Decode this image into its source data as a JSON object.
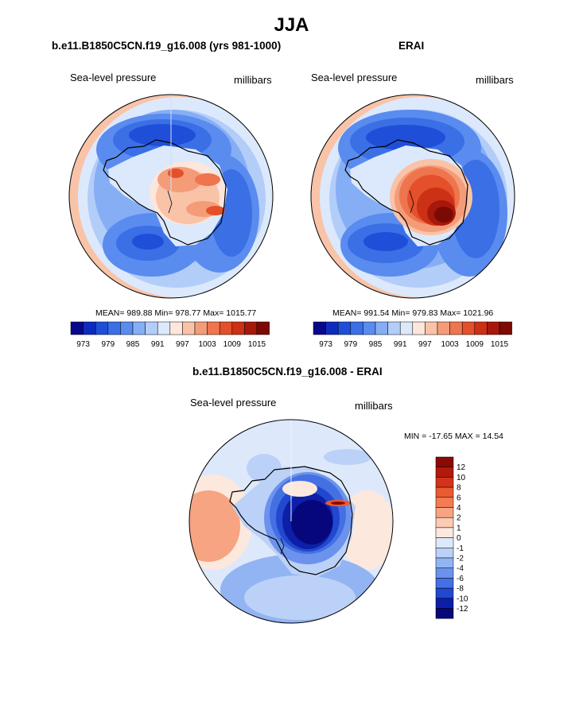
{
  "figure_title": "JJA",
  "panels": [
    {
      "title": "b.e11.B1850C5CN.f19_g16.008 (yrs 981-1000)",
      "left_label": "Sea-level pressure",
      "right_label": "millibars",
      "stats": "MEAN= 989.88  Min= 978.77  Max= 1015.77"
    },
    {
      "title": "ERAI",
      "left_label": "Sea-level pressure",
      "right_label": "millibars",
      "stats": "MEAN= 991.54  Min= 979.83  Max= 1021.96"
    },
    {
      "title": "b.e11.B1850C5CN.f19_g16.008 - ERAI",
      "left_label": "Sea-level pressure",
      "right_label": "millibars",
      "stats": "MIN = -17.65 MAX =  14.54"
    }
  ],
  "chart_data": [
    {
      "type": "heatmap",
      "title": "b.e11.B1850C5CN.f19_g16.008 (yrs 981-1000)",
      "variable": "Sea-level pressure",
      "units": "millibars",
      "projection": "south polar stereographic",
      "mean": 989.88,
      "min": 978.77,
      "max": 1015.77,
      "colorbar": {
        "levels": [
          970,
          973,
          976,
          979,
          982,
          985,
          988,
          991,
          994,
          997,
          1000,
          1003,
          1006,
          1009,
          1012,
          1015
        ],
        "tick_labels": [
          "973",
          "979",
          "985",
          "991",
          "997",
          "1003",
          "1009",
          "1015"
        ],
        "colors": [
          "#08088a",
          "#0e2bc0",
          "#1f4fd8",
          "#3a6fe6",
          "#5a8bef",
          "#86aef5",
          "#b3cdf9",
          "#dce9fc",
          "#fde6db",
          "#f9c3a8",
          "#f49c78",
          "#ee754e",
          "#e3502b",
          "#cc3015",
          "#a7180a",
          "#7a0a03"
        ]
      }
    },
    {
      "type": "heatmap",
      "title": "ERAI",
      "variable": "Sea-level pressure",
      "units": "millibars",
      "projection": "south polar stereographic",
      "mean": 991.54,
      "min": 979.83,
      "max": 1021.96,
      "colorbar": {
        "levels": [
          970,
          973,
          976,
          979,
          982,
          985,
          988,
          991,
          994,
          997,
          1000,
          1003,
          1006,
          1009,
          1012,
          1015
        ],
        "tick_labels": [
          "973",
          "979",
          "985",
          "991",
          "997",
          "1003",
          "1009",
          "1015"
        ],
        "colors": [
          "#08088a",
          "#0e2bc0",
          "#1f4fd8",
          "#3a6fe6",
          "#5a8bef",
          "#86aef5",
          "#b3cdf9",
          "#dce9fc",
          "#fde6db",
          "#f9c3a8",
          "#f49c78",
          "#ee754e",
          "#e3502b",
          "#cc3015",
          "#a7180a",
          "#7a0a03"
        ]
      }
    },
    {
      "type": "heatmap",
      "title": "b.e11.B1850C5CN.f19_g16.008 - ERAI",
      "variable": "Sea-level pressure",
      "units": "millibars",
      "projection": "south polar stereographic",
      "min": -17.65,
      "max": 14.54,
      "colorbar": {
        "orientation": "vertical",
        "tick_labels": [
          "12",
          "10",
          "8",
          "6",
          "4",
          "2",
          "1",
          "0",
          "-1",
          "-2",
          "-4",
          "-6",
          "-8",
          "-10",
          "-12"
        ],
        "colors_top_to_bottom": [
          "#8b0a05",
          "#b21a0c",
          "#d3321b",
          "#ec5a2f",
          "#f37c52",
          "#f7a482",
          "#fbcbb4",
          "#fde8de",
          "#dde9fb",
          "#bcd1f7",
          "#93b4f2",
          "#6b92ec",
          "#4470e3",
          "#2148cf",
          "#0d1fa8",
          "#05077a"
        ]
      }
    }
  ]
}
